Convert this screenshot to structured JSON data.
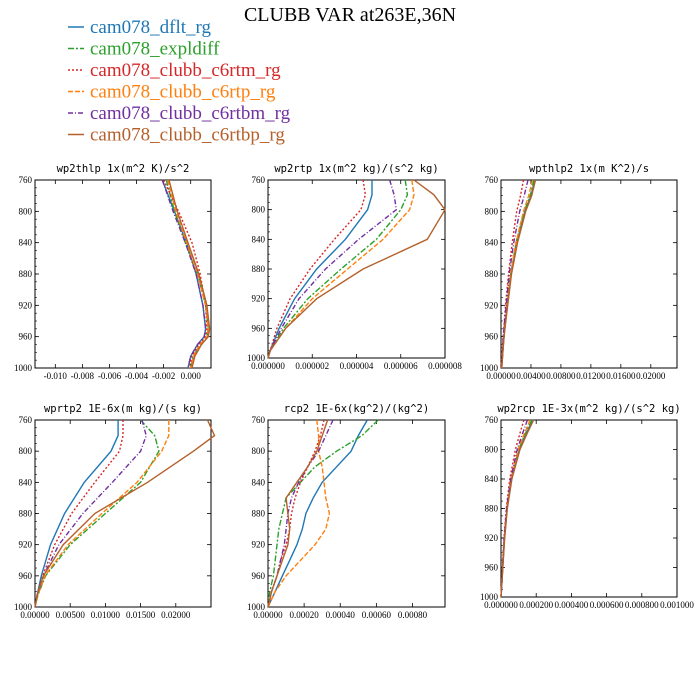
{
  "title": "CLUBB VAR at263E,36N",
  "legend": [
    {
      "name": "cam078_dflt_rg",
      "color": "#1f77b4",
      "dash": ""
    },
    {
      "name": "cam078_expldiff",
      "color": "#2ca02c",
      "dash": "6 2 2 2"
    },
    {
      "name": "cam078_clubb_c6rtm_rg",
      "color": "#d62728",
      "dash": "2 2"
    },
    {
      "name": "cam078_clubb_c6rtp_rg",
      "color": "#ff7f0e",
      "dash": "5 2"
    },
    {
      "name": "cam078_clubb_c6rtbm_rg",
      "color": "#7030a0",
      "dash": "5 2 1 2"
    },
    {
      "name": "cam078_clubb_c6rtbp_rg",
      "color": "#b5602b",
      "dash": ""
    }
  ],
  "chart_data": [
    {
      "type": "line",
      "title": "wp2thlp  1x(m^2 K)/s^2",
      "ylim": [
        1000,
        760
      ],
      "yticks": [
        "760",
        "800",
        "840",
        "880",
        "920",
        "960",
        "1000"
      ],
      "xlim": [
        -0.0115,
        0.0015
      ],
      "xticks": [
        -0.01,
        -0.008,
        -0.006,
        -0.004,
        -0.002,
        0.0
      ],
      "xticklabels": [
        "-0.010",
        "-0.008",
        "-0.006",
        "-0.004",
        "-0.002",
        "0.000"
      ],
      "y": [
        760,
        800,
        840,
        880,
        920,
        950,
        960,
        970,
        985,
        1000
      ],
      "series": [
        {
          "name": "cam078_dflt_rg",
          "x": [
            -0.0021,
            -0.0012,
            -0.0003,
            0.0004,
            0.0009,
            0.0011,
            0.001,
            0.0005,
            0.0,
            -0.0002
          ]
        },
        {
          "name": "cam078_expldiff",
          "x": [
            -0.0018,
            -0.0012,
            -0.0004,
            0.0005,
            0.0011,
            0.0013,
            0.0012,
            0.0007,
            0.0002,
            0.0
          ]
        },
        {
          "name": "cam078_clubb_c6rtm_rg",
          "x": [
            -0.002,
            -0.0009,
            0.0001,
            0.0007,
            0.0011,
            0.0012,
            0.0011,
            0.0006,
            0.0001,
            -0.0001
          ]
        },
        {
          "name": "cam078_clubb_c6rtp_rg",
          "x": [
            -0.0017,
            -0.0011,
            -0.0003,
            0.0005,
            0.0011,
            0.0013,
            0.0012,
            0.0007,
            0.0002,
            0.0
          ]
        },
        {
          "name": "cam078_clubb_c6rtbm_rg",
          "x": [
            -0.0021,
            -0.0013,
            -0.0004,
            0.0004,
            0.0009,
            0.0011,
            0.001,
            0.0005,
            0.0,
            -0.0002
          ]
        },
        {
          "name": "cam078_clubb_c6rtbp_rg",
          "x": [
            -0.0016,
            -0.001,
            -0.0002,
            0.0006,
            0.0012,
            0.0014,
            0.0013,
            0.0008,
            0.0003,
            0.0001
          ]
        }
      ]
    },
    {
      "type": "line",
      "title": "wp2rtp  1x(m^2 kg)/(s^2 kg)",
      "ylim": [
        1000,
        760
      ],
      "yticks": [
        "760",
        "800",
        "840",
        "880",
        "920",
        "960",
        "1000"
      ],
      "xlim": [
        0,
        8e-06
      ],
      "xticks": [
        0,
        2e-06,
        4e-06,
        6e-06,
        8e-06
      ],
      "xticklabels": [
        "0.000000",
        "0.000002",
        "0.000004",
        "0.000006",
        "0.000008"
      ],
      "y": [
        760,
        780,
        800,
        840,
        880,
        920,
        960,
        990,
        1000
      ],
      "series": [
        {
          "name": "cam078_dflt_rg",
          "x": [
            4.7e-06,
            4.7e-06,
            4.5e-06,
            3.5e-06,
            2.2e-06,
            1.2e-06,
            5e-07,
            1e-07,
            0.0
          ]
        },
        {
          "name": "cam078_expldiff",
          "x": [
            6.2e-06,
            6.3e-06,
            6e-06,
            4.9e-06,
            3.3e-06,
            1.8e-06,
            7e-07,
            1e-07,
            0.0
          ]
        },
        {
          "name": "cam078_clubb_c6rtm_rg",
          "x": [
            4.3e-06,
            4.4e-06,
            4.2e-06,
            3e-06,
            1.9e-06,
            1e-06,
            4e-07,
            1e-07,
            0.0
          ]
        },
        {
          "name": "cam078_clubb_c6rtp_rg",
          "x": [
            6.5e-06,
            6.6e-06,
            6.4e-06,
            5.2e-06,
            3.6e-06,
            2e-06,
            8e-07,
            1e-07,
            0.0
          ]
        },
        {
          "name": "cam078_clubb_c6rtbm_rg",
          "x": [
            5.5e-06,
            5.7e-06,
            5.8e-06,
            4.1e-06,
            2.6e-06,
            1.4e-06,
            6e-07,
            1e-07,
            0.0
          ]
        },
        {
          "name": "cam078_clubb_c6rtbp_rg",
          "x": [
            6.6e-06,
            7.5e-06,
            8e-06,
            7.2e-06,
            4.3e-06,
            2.2e-06,
            8e-07,
            1e-07,
            0.0
          ]
        }
      ]
    },
    {
      "type": "line",
      "title": "wpthlp2  1x(m K^2)/s",
      "ylim": [
        1000,
        760
      ],
      "yticks": [
        "760",
        "800",
        "840",
        "880",
        "920",
        "960",
        "1000"
      ],
      "xlim": [
        0,
        0.0235
      ],
      "xticks": [
        0,
        0.004,
        0.008,
        0.012,
        0.016,
        0.02
      ],
      "xticklabels": [
        "0.00000",
        "0.00400",
        "0.00800",
        "0.01200",
        "0.01600",
        "0.02000"
      ],
      "y": [
        760,
        780,
        800,
        840,
        880,
        920,
        960,
        985,
        1000
      ],
      "series": [
        {
          "name": "cam078_dflt_rg",
          "x": [
            0.0045,
            0.004,
            0.0032,
            0.0021,
            0.0013,
            0.0008,
            0.0004,
            0.0002,
            0.0001
          ]
        },
        {
          "name": "cam078_expldiff",
          "x": [
            0.0044,
            0.0039,
            0.0031,
            0.002,
            0.0013,
            0.0008,
            0.0004,
            0.0002,
            0.0001
          ]
        },
        {
          "name": "cam078_clubb_c6rtm_rg",
          "x": [
            0.003,
            0.0026,
            0.0021,
            0.0015,
            0.001,
            0.0006,
            0.0003,
            0.0001,
            0.0
          ]
        },
        {
          "name": "cam078_clubb_c6rtp_rg",
          "x": [
            0.0042,
            0.0037,
            0.003,
            0.002,
            0.0013,
            0.0008,
            0.0004,
            0.0002,
            0.0001
          ]
        },
        {
          "name": "cam078_clubb_c6rtbm_rg",
          "x": [
            0.0036,
            0.0031,
            0.0025,
            0.0017,
            0.0011,
            0.0007,
            0.0003,
            0.0002,
            0.0001
          ]
        },
        {
          "name": "cam078_clubb_c6rtbp_rg",
          "x": [
            0.0046,
            0.0041,
            0.0033,
            0.0022,
            0.0014,
            0.0009,
            0.0004,
            0.0002,
            0.0001
          ]
        }
      ]
    },
    {
      "type": "line",
      "title": "wprtp2  1E-6x(m kg)/(s kg)",
      "ylim": [
        1000,
        760
      ],
      "yticks": [
        "760",
        "800",
        "840",
        "880",
        "920",
        "960",
        "1000"
      ],
      "xlim": [
        0,
        0.025
      ],
      "xticks": [
        0,
        0.005,
        0.01,
        0.015,
        0.02
      ],
      "xticklabels": [
        "0.00000",
        "0.00500",
        "0.01000",
        "0.01500",
        "0.02000"
      ],
      "y": [
        760,
        780,
        800,
        840,
        880,
        920,
        960,
        985,
        1000
      ],
      "series": [
        {
          "name": "cam078_dflt_rg",
          "x": [
            0.0118,
            0.0118,
            0.0108,
            0.007,
            0.0042,
            0.0022,
            0.0009,
            0.0003,
            0.0
          ]
        },
        {
          "name": "cam078_expldiff",
          "x": [
            0.015,
            0.017,
            0.0176,
            0.015,
            0.01,
            0.005,
            0.0015,
            0.0004,
            0.0
          ]
        },
        {
          "name": "cam078_clubb_c6rtm_rg",
          "x": [
            0.0125,
            0.0125,
            0.012,
            0.0085,
            0.0052,
            0.0028,
            0.0011,
            0.0003,
            0.0
          ]
        },
        {
          "name": "cam078_clubb_c6rtp_rg",
          "x": [
            0.019,
            0.019,
            0.018,
            0.0145,
            0.0095,
            0.0047,
            0.0014,
            0.0004,
            0.0
          ]
        },
        {
          "name": "cam078_clubb_c6rtbm_rg",
          "x": [
            0.0152,
            0.0158,
            0.015,
            0.011,
            0.0068,
            0.0034,
            0.0012,
            0.0003,
            0.0
          ]
        },
        {
          "name": "cam078_clubb_c6rtbp_rg",
          "x": [
            0.0245,
            0.0255,
            0.0225,
            0.016,
            0.0085,
            0.004,
            0.0012,
            0.0003,
            0.0
          ]
        }
      ]
    },
    {
      "type": "line",
      "title": "rcp2  1E-6x(kg^2)/(kg^2)",
      "ylim": [
        1000,
        760
      ],
      "yticks": [
        "760",
        "800",
        "840",
        "880",
        "920",
        "960",
        "1000"
      ],
      "xlim": [
        0,
        0.00098
      ],
      "xticks": [
        0,
        0.0002,
        0.0004,
        0.0006,
        0.0008
      ],
      "xticklabels": [
        "0.00000",
        "0.00020",
        "0.00040",
        "0.00060",
        "0.00080"
      ],
      "y": [
        760,
        780,
        800,
        820,
        840,
        860,
        880,
        900,
        920,
        940,
        960,
        980,
        1000
      ],
      "series": [
        {
          "name": "cam078_dflt_rg",
          "x": [
            0.00055,
            0.0005,
            0.00046,
            0.00038,
            0.0003,
            0.00025,
            0.00021,
            0.00019,
            0.00016,
            0.00012,
            8e-05,
            4e-05,
            0.0
          ]
        },
        {
          "name": "cam078_expldiff",
          "x": [
            0.00061,
            0.00052,
            0.00038,
            0.00026,
            0.00018,
            0.0001,
            8e-05,
            6e-05,
            5e-05,
            4e-05,
            3e-05,
            1e-05,
            0.0
          ]
        },
        {
          "name": "cam078_clubb_c6rtm_rg",
          "x": [
            0.00031,
            0.00029,
            0.00026,
            0.00022,
            0.00018,
            0.00015,
            0.00013,
            0.00012,
            0.0001,
            7e-05,
            5e-05,
            2e-05,
            0.0
          ]
        },
        {
          "name": "cam078_clubb_c6rtp_rg",
          "x": [
            0.00027,
            0.00028,
            0.00028,
            0.0003,
            0.00031,
            0.00032,
            0.00034,
            0.00032,
            0.00026,
            0.00018,
            0.0001,
            4e-05,
            0.0
          ]
        },
        {
          "name": "cam078_clubb_c6rtbm_rg",
          "x": [
            0.00036,
            0.00032,
            0.00028,
            0.00022,
            0.00017,
            0.00013,
            0.00011,
            0.0001,
            9e-05,
            7e-05,
            5e-05,
            2e-05,
            0.0
          ]
        },
        {
          "name": "cam078_clubb_c6rtbp_rg",
          "x": [
            0.00033,
            0.0003,
            0.00027,
            0.00022,
            0.00016,
            0.0001,
            0.00011,
            0.00012,
            0.00011,
            8e-05,
            5e-05,
            2e-05,
            0.0
          ]
        }
      ]
    },
    {
      "type": "line",
      "title": "wp2rcp  1E-3x(m^2 kg)/(s^2 kg)",
      "ylim": [
        1000,
        760
      ],
      "yticks": [
        "760",
        "800",
        "840",
        "880",
        "920",
        "960",
        "1000"
      ],
      "xlim": [
        0,
        0.001
      ],
      "xticks": [
        0,
        0.0002,
        0.0004,
        0.0006,
        0.0008,
        0.001
      ],
      "xticklabels": [
        "0.000000",
        "0.000200",
        "0.000400",
        "0.000600",
        "0.000800",
        "0.001000"
      ],
      "y": [
        760,
        780,
        800,
        840,
        880,
        920,
        960,
        985,
        1000
      ],
      "series": [
        {
          "name": "cam078_dflt_rg",
          "x": [
            0.00018,
            0.00014,
            0.000105,
            6e-05,
            3.5e-05,
            2e-05,
            1e-05,
            4e-06,
            0.0
          ]
        },
        {
          "name": "cam078_expldiff",
          "x": [
            0.000175,
            0.000135,
            0.0001,
            5.8e-05,
            3.4e-05,
            1.9e-05,
            9e-06,
            4e-06,
            0.0
          ]
        },
        {
          "name": "cam078_clubb_c6rtm_rg",
          "x": [
            0.00013,
            0.000105,
            8.2e-05,
            5e-05,
            3e-05,
            1.7e-05,
            8e-06,
            3e-06,
            0.0
          ]
        },
        {
          "name": "cam078_clubb_c6rtp_rg",
          "x": [
            0.000165,
            0.00013,
            9.8e-05,
            5.7e-05,
            3.3e-05,
            1.9e-05,
            9e-06,
            4e-06,
            0.0
          ]
        },
        {
          "name": "cam078_clubb_c6rtbm_rg",
          "x": [
            0.00015,
            0.00012,
            9.2e-05,
            5.5e-05,
            3.2e-05,
            1.8e-05,
            9e-06,
            4e-06,
            0.0
          ]
        },
        {
          "name": "cam078_clubb_c6rtbp_rg",
          "x": [
            0.000185,
            0.000145,
            0.000108,
            6.2e-05,
            3.6e-05,
            2.1e-05,
            1e-05,
            4e-06,
            0.0
          ]
        }
      ]
    }
  ]
}
